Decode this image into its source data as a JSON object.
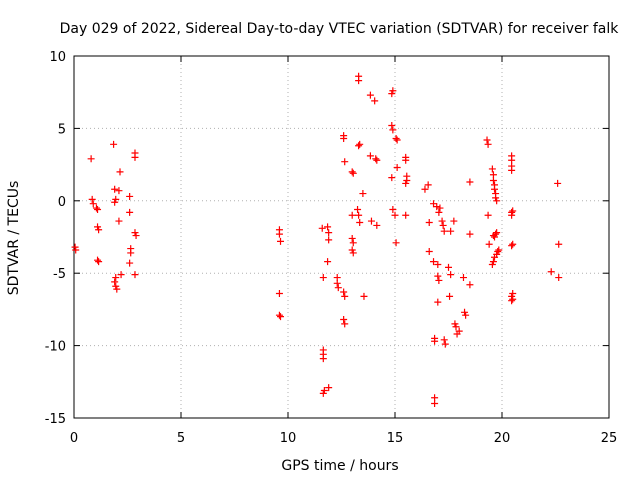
{
  "chart_data": {
    "type": "scatter",
    "title": "Day 029 of 2022, Sidereal Day-to-day VTEC variation (SDTVAR) for receiver falk",
    "xlabel": "GPS time / hours",
    "ylabel": "SDTVAR / TECUs",
    "xlim": [
      0,
      25
    ],
    "ylim": [
      -15,
      10
    ],
    "xticks": [
      0,
      5,
      10,
      15,
      20,
      25
    ],
    "yticks": [
      -15,
      -10,
      -5,
      0,
      5,
      10
    ],
    "grid": true,
    "marker": "+",
    "color": "#ff0000",
    "series": [
      {
        "name": "SDTVAR",
        "points": [
          [
            0.05,
            -3.2
          ],
          [
            0.08,
            -3.4
          ],
          [
            0.8,
            2.9
          ],
          [
            0.85,
            0.1
          ],
          [
            0.9,
            -0.2
          ],
          [
            1.05,
            -0.5
          ],
          [
            1.1,
            -0.6
          ],
          [
            1.1,
            -1.8
          ],
          [
            1.15,
            -2.0
          ],
          [
            1.1,
            -4.1
          ],
          [
            1.15,
            -4.2
          ],
          [
            1.85,
            3.9
          ],
          [
            1.9,
            0.8
          ],
          [
            1.95,
            0.1
          ],
          [
            1.9,
            -0.1
          ],
          [
            1.95,
            -5.3
          ],
          [
            1.9,
            -5.6
          ],
          [
            1.95,
            -5.9
          ],
          [
            2.0,
            -6.1
          ],
          [
            2.1,
            0.7
          ],
          [
            2.15,
            2.0
          ],
          [
            2.1,
            -1.4
          ],
          [
            2.2,
            -5.1
          ],
          [
            2.6,
            0.3
          ],
          [
            2.6,
            -0.8
          ],
          [
            2.65,
            -3.3
          ],
          [
            2.65,
            -3.6
          ],
          [
            2.6,
            -4.3
          ],
          [
            2.85,
            3.3
          ],
          [
            2.85,
            3.0
          ],
          [
            2.85,
            -2.2
          ],
          [
            2.9,
            -2.4
          ],
          [
            2.85,
            -5.1
          ],
          [
            9.6,
            -2.0
          ],
          [
            9.6,
            -2.3
          ],
          [
            9.65,
            -2.8
          ],
          [
            9.6,
            -6.4
          ],
          [
            9.6,
            -7.9
          ],
          [
            9.65,
            -8.0
          ],
          [
            11.6,
            -1.9
          ],
          [
            11.65,
            -5.3
          ],
          [
            11.65,
            -10.3
          ],
          [
            11.65,
            -10.6
          ],
          [
            11.65,
            -10.9
          ],
          [
            11.7,
            -13.1
          ],
          [
            11.65,
            -13.3
          ],
          [
            11.85,
            -1.8
          ],
          [
            11.9,
            -2.2
          ],
          [
            11.9,
            -2.7
          ],
          [
            11.85,
            -4.2
          ],
          [
            11.9,
            -12.9
          ],
          [
            12.3,
            -5.3
          ],
          [
            12.3,
            -5.7
          ],
          [
            12.35,
            -6.0
          ],
          [
            12.6,
            4.5
          ],
          [
            12.6,
            4.3
          ],
          [
            12.65,
            2.7
          ],
          [
            12.6,
            -6.3
          ],
          [
            12.65,
            -6.6
          ],
          [
            12.6,
            -8.2
          ],
          [
            12.65,
            -8.5
          ],
          [
            13.0,
            2.0
          ],
          [
            13.05,
            1.9
          ],
          [
            13.0,
            -1.0
          ],
          [
            13.0,
            -2.6
          ],
          [
            13.05,
            -2.9
          ],
          [
            13.0,
            -3.4
          ],
          [
            13.05,
            -3.6
          ],
          [
            13.3,
            8.6
          ],
          [
            13.3,
            8.3
          ],
          [
            13.35,
            3.9
          ],
          [
            13.3,
            3.8
          ],
          [
            13.25,
            -0.6
          ],
          [
            13.3,
            -1.0
          ],
          [
            13.35,
            -1.5
          ],
          [
            13.5,
            0.5
          ],
          [
            13.55,
            -6.6
          ],
          [
            13.85,
            7.3
          ],
          [
            13.85,
            3.1
          ],
          [
            13.9,
            -1.4
          ],
          [
            14.05,
            6.9
          ],
          [
            14.1,
            2.9
          ],
          [
            14.15,
            2.8
          ],
          [
            14.15,
            -1.7
          ],
          [
            14.9,
            7.6
          ],
          [
            14.85,
            7.4
          ],
          [
            14.85,
            5.2
          ],
          [
            14.9,
            4.9
          ],
          [
            14.85,
            1.6
          ],
          [
            14.9,
            -0.6
          ],
          [
            15.0,
            -1.0
          ],
          [
            15.05,
            4.3
          ],
          [
            15.1,
            4.2
          ],
          [
            15.1,
            2.3
          ],
          [
            15.05,
            -2.9
          ],
          [
            15.5,
            3.0
          ],
          [
            15.5,
            2.8
          ],
          [
            15.55,
            1.7
          ],
          [
            15.55,
            1.4
          ],
          [
            15.5,
            1.2
          ],
          [
            15.5,
            -1.0
          ],
          [
            16.4,
            0.8
          ],
          [
            16.55,
            1.1
          ],
          [
            16.6,
            -1.5
          ],
          [
            16.6,
            -3.5
          ],
          [
            16.8,
            -0.2
          ],
          [
            16.8,
            -4.2
          ],
          [
            16.85,
            -9.5
          ],
          [
            16.85,
            -9.7
          ],
          [
            16.85,
            -13.6
          ],
          [
            16.85,
            -14.0
          ],
          [
            16.95,
            -0.4
          ],
          [
            17.05,
            -0.8
          ],
          [
            17.0,
            -4.4
          ],
          [
            17.0,
            -5.2
          ],
          [
            17.05,
            -5.5
          ],
          [
            17.0,
            -7.0
          ],
          [
            17.1,
            -0.5
          ],
          [
            17.2,
            -1.4
          ],
          [
            17.25,
            -1.7
          ],
          [
            17.3,
            -2.1
          ],
          [
            17.3,
            -9.6
          ],
          [
            17.35,
            -9.9
          ],
          [
            17.5,
            -4.6
          ],
          [
            17.55,
            -6.6
          ],
          [
            17.6,
            -2.1
          ],
          [
            17.6,
            -5.1
          ],
          [
            17.75,
            -1.4
          ],
          [
            17.8,
            -8.5
          ],
          [
            17.85,
            -8.7
          ],
          [
            17.9,
            -9.2
          ],
          [
            18.0,
            -9.0
          ],
          [
            18.25,
            -7.7
          ],
          [
            18.3,
            -7.9
          ],
          [
            18.2,
            -5.3
          ],
          [
            18.5,
            1.3
          ],
          [
            18.5,
            -2.3
          ],
          [
            18.5,
            -5.8
          ],
          [
            19.3,
            4.2
          ],
          [
            19.35,
            3.9
          ],
          [
            19.35,
            -1.0
          ],
          [
            19.4,
            -3.0
          ],
          [
            19.55,
            2.2
          ],
          [
            19.6,
            1.8
          ],
          [
            19.6,
            1.4
          ],
          [
            19.65,
            1.1
          ],
          [
            19.65,
            0.8
          ],
          [
            19.7,
            0.5
          ],
          [
            19.7,
            0.2
          ],
          [
            19.75,
            0.0
          ],
          [
            19.6,
            -2.4
          ],
          [
            19.65,
            -2.5
          ],
          [
            19.65,
            -3.9
          ],
          [
            19.6,
            -4.2
          ],
          [
            19.55,
            -4.4
          ],
          [
            19.7,
            -2.3
          ],
          [
            19.75,
            -2.2
          ],
          [
            19.75,
            -3.7
          ],
          [
            19.8,
            -3.5
          ],
          [
            19.85,
            -3.4
          ],
          [
            20.45,
            3.1
          ],
          [
            20.45,
            2.8
          ],
          [
            20.45,
            2.4
          ],
          [
            20.45,
            2.1
          ],
          [
            20.45,
            -0.8
          ],
          [
            20.45,
            -1.0
          ],
          [
            20.5,
            -0.7
          ],
          [
            20.45,
            -3.1
          ],
          [
            20.5,
            -3.0
          ],
          [
            20.45,
            -6.6
          ],
          [
            20.45,
            -6.9
          ],
          [
            20.5,
            -6.4
          ],
          [
            20.5,
            -6.8
          ],
          [
            22.6,
            1.2
          ],
          [
            22.65,
            -3.0
          ],
          [
            22.3,
            -4.9
          ],
          [
            22.65,
            -5.3
          ]
        ]
      }
    ]
  }
}
